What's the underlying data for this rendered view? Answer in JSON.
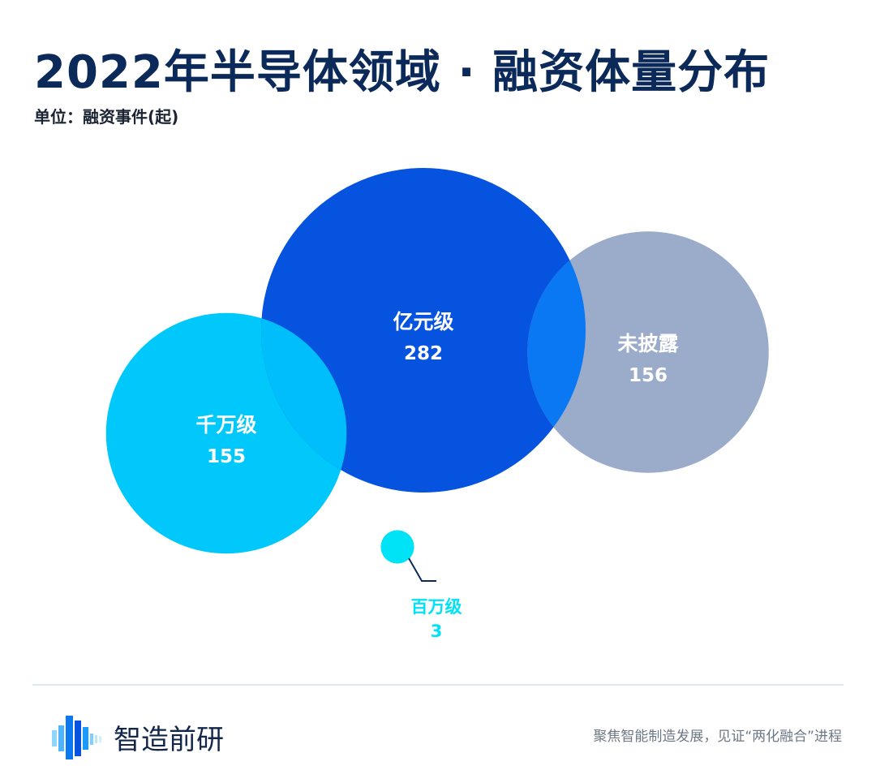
{
  "header": {
    "title": "2022年半导体领域 · 融资体量分布",
    "unit": "单位：融资事件(起)"
  },
  "colors": {
    "yi": "#0553de",
    "qianwan": "#00c8fa",
    "weipilu": "#9aacca",
    "baiwan": "#00e2f5",
    "overlap": "#0a78f2"
  },
  "chart_data": {
    "type": "bubble",
    "title": "2022年半导体领域 · 融资体量分布",
    "unit": "单位：融资事件(起)",
    "series": [
      {
        "name": "亿元级",
        "value": 282
      },
      {
        "name": "千万级",
        "value": 155
      },
      {
        "name": "未披露",
        "value": 156
      },
      {
        "name": "百万级",
        "value": 3
      }
    ]
  },
  "footer": {
    "brand": "智造前研",
    "slogan": "聚焦智能制造发展，见证“两化融合”进程"
  }
}
